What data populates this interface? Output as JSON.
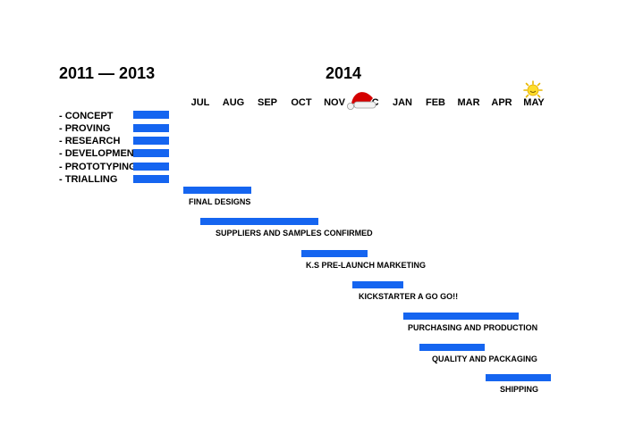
{
  "headers": {
    "early": "2011 — 2013",
    "main": "2014"
  },
  "months": [
    "JUL",
    "AUG",
    "SEP",
    "OCT",
    "NOV",
    "DEC",
    "JAN",
    "FEB",
    "MAR",
    "APR",
    "MAY"
  ],
  "phases": [
    "- CONCEPT",
    "- PROVING",
    "- RESEARCH",
    "- DEVELOPMENT",
    "- PROTOTYPING",
    "- TRIALLING"
  ],
  "tasks": [
    {
      "label": "FINAL DESIGNS"
    },
    {
      "label": "SUPPLIERS AND SAMPLES CONFIRMED"
    },
    {
      "label": "K.S PRE-LAUNCH MARKETING"
    },
    {
      "label": "KICKSTARTER A GO GO!!"
    },
    {
      "label": "PURCHASING AND PRODUCTION"
    },
    {
      "label": "QUALITY AND PACKAGING"
    },
    {
      "label": "SHIPPING"
    }
  ],
  "decorations": {
    "santa_hat": "santa-hat-icon",
    "sun": "sun-icon"
  },
  "colors": {
    "bar": "#1565f0"
  }
}
